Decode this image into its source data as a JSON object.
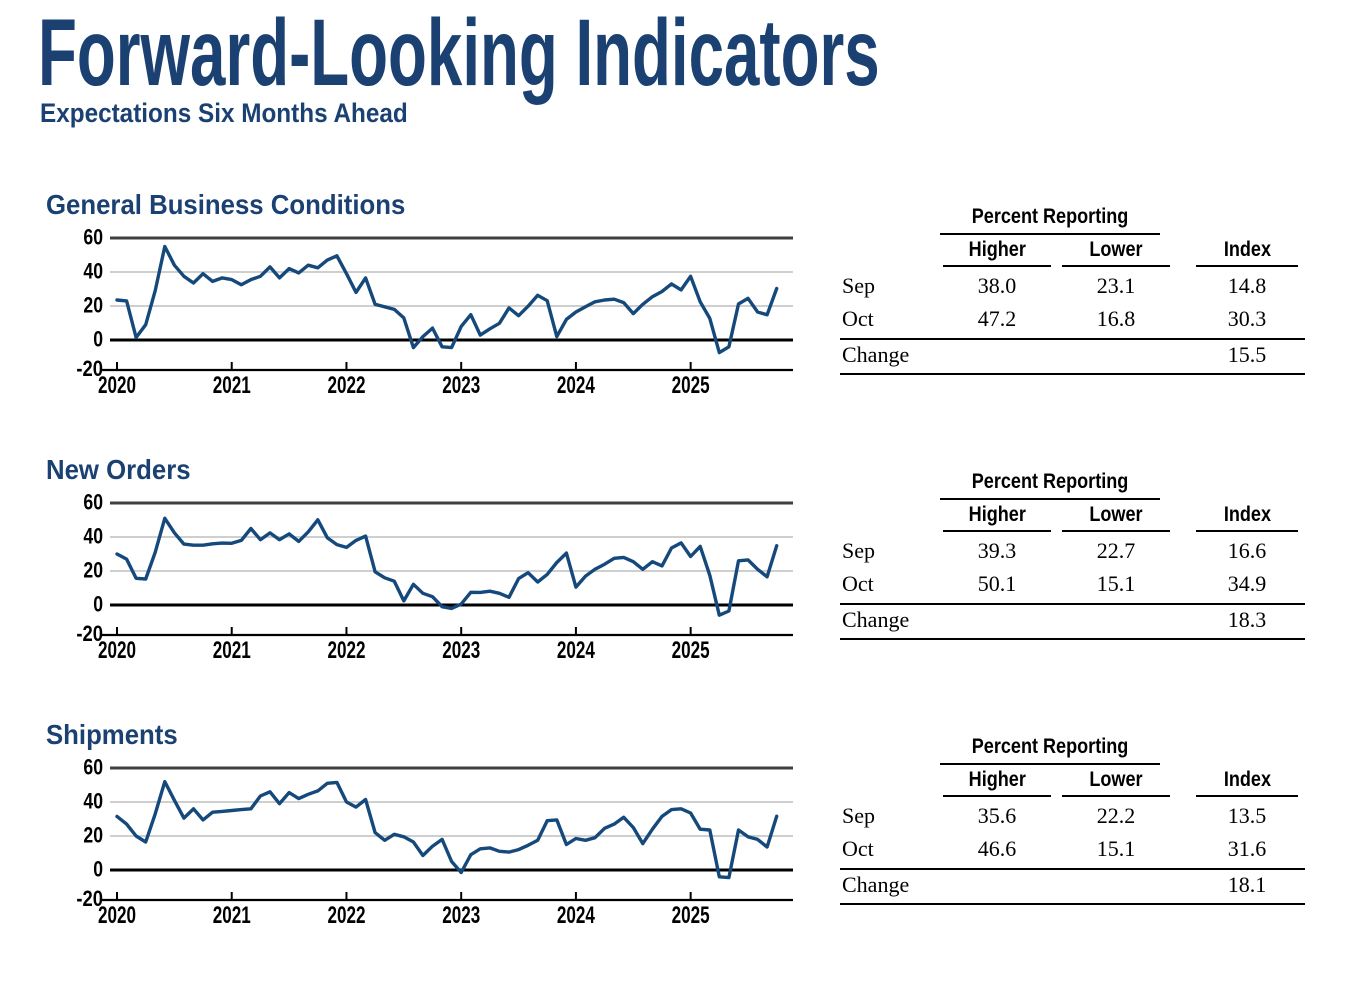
{
  "page": {
    "title": "Forward-Looking Indicators",
    "subtitle": "Expectations Six Months Ahead"
  },
  "colors": {
    "navy_text": "#1B4173",
    "line": "#15497C",
    "grid": "#C8C8C8",
    "top_rule": "#3F3F3F",
    "axis": "#000000"
  },
  "sections": [
    {
      "title": "General Business Conditions",
      "table": {
        "group_header": "Percent Reporting",
        "col_higher": "Higher",
        "col_lower": "Lower",
        "col_index": "Index",
        "rows": [
          {
            "label": "Sep",
            "higher": "38.0",
            "lower": "23.1",
            "index": "14.8"
          },
          {
            "label": "Oct",
            "higher": "47.2",
            "lower": "16.8",
            "index": "30.3"
          },
          {
            "label": "Change",
            "higher": "",
            "lower": "",
            "index": "15.5"
          }
        ]
      }
    },
    {
      "title": "New Orders",
      "table": {
        "group_header": "Percent Reporting",
        "col_higher": "Higher",
        "col_lower": "Lower",
        "col_index": "Index",
        "rows": [
          {
            "label": "Sep",
            "higher": "39.3",
            "lower": "22.7",
            "index": "16.6"
          },
          {
            "label": "Oct",
            "higher": "50.1",
            "lower": "15.1",
            "index": "34.9"
          },
          {
            "label": "Change",
            "higher": "",
            "lower": "",
            "index": "18.3"
          }
        ]
      }
    },
    {
      "title": "Shipments",
      "table": {
        "group_header": "Percent Reporting",
        "col_higher": "Higher",
        "col_lower": "Lower",
        "col_index": "Index",
        "rows": [
          {
            "label": "Sep",
            "higher": "35.6",
            "lower": "22.2",
            "index": "13.5"
          },
          {
            "label": "Oct",
            "higher": "46.6",
            "lower": "15.1",
            "index": "31.6"
          },
          {
            "label": "Change",
            "higher": "",
            "lower": "",
            "index": "18.1"
          }
        ]
      }
    }
  ],
  "chart_data": [
    {
      "type": "line",
      "title": "General Business Conditions",
      "x_frequency": "monthly",
      "x_start": "2020-01",
      "x_end": "2025-10",
      "x_tick_labels": [
        "2020",
        "2021",
        "2022",
        "2023",
        "2024",
        "2025"
      ],
      "ylim": [
        -20,
        60
      ],
      "yticks": [
        60,
        40,
        20,
        0,
        -20
      ],
      "grid": "horizontal",
      "zero_line": true,
      "legend": "none",
      "series": [
        {
          "name": "General Business Conditions",
          "values": [
            23.5,
            23.0,
            1.5,
            9.0,
            29.0,
            55.0,
            44.0,
            37.5,
            33.5,
            39.0,
            34.5,
            36.5,
            35.5,
            32.5,
            35.5,
            37.5,
            43.0,
            36.5,
            42.0,
            39.5,
            44.0,
            42.5,
            47.0,
            49.5,
            39.0,
            28.0,
            36.5,
            21.0,
            19.5,
            18.0,
            13.0,
            -4.5,
            2.0,
            7.0,
            -4.0,
            -4.5,
            8.0,
            14.9,
            2.9,
            6.6,
            9.8,
            18.9,
            14.3,
            19.9,
            26.3,
            23.1,
            2.0,
            12.1,
            16.5,
            19.5,
            22.5,
            23.5,
            24.0,
            22.0,
            15.5,
            21.0,
            25.5,
            28.5,
            33.0,
            29.5,
            37.5,
            22.5,
            12.7,
            -7.4,
            -4.0,
            21.2,
            24.5,
            16.5,
            14.8,
            30.3
          ]
        }
      ]
    },
    {
      "type": "line",
      "title": "New Orders",
      "x_frequency": "monthly",
      "x_start": "2020-01",
      "x_end": "2025-10",
      "x_tick_labels": [
        "2020",
        "2021",
        "2022",
        "2023",
        "2024",
        "2025"
      ],
      "ylim": [
        -20,
        60
      ],
      "yticks": [
        60,
        40,
        20,
        0,
        -20
      ],
      "grid": "horizontal",
      "zero_line": true,
      "legend": "none",
      "series": [
        {
          "name": "New Orders",
          "values": [
            30.0,
            27.0,
            15.7,
            15.3,
            31.0,
            51.0,
            42.5,
            35.8,
            35.2,
            35.2,
            36.0,
            36.4,
            36.3,
            38.0,
            45.0,
            38.4,
            42.4,
            38.4,
            41.8,
            37.4,
            43.0,
            50.1,
            39.6,
            35.5,
            33.9,
            38.0,
            40.5,
            19.5,
            16.0,
            14.0,
            2.4,
            12.2,
            6.9,
            4.9,
            -1.0,
            -2.0,
            0.5,
            7.5,
            7.4,
            8.1,
            6.9,
            4.5,
            15.5,
            19.0,
            13.5,
            18.0,
            25.0,
            30.5,
            10.5,
            17.0,
            21.0,
            24.0,
            27.5,
            28.0,
            25.5,
            21.0,
            25.5,
            23.0,
            33.5,
            36.5,
            28.5,
            34.5,
            17.5,
            -6.0,
            -3.5,
            26.0,
            26.5,
            21.0,
            16.6,
            34.9
          ]
        }
      ]
    },
    {
      "type": "line",
      "title": "Shipments",
      "x_frequency": "monthly",
      "x_start": "2020-01",
      "x_end": "2025-10",
      "x_tick_labels": [
        "2020",
        "2021",
        "2022",
        "2023",
        "2024",
        "2025"
      ],
      "ylim": [
        -20,
        60
      ],
      "yticks": [
        60,
        40,
        20,
        0,
        -20
      ],
      "grid": "horizontal",
      "zero_line": true,
      "legend": "none",
      "series": [
        {
          "name": "Shipments",
          "values": [
            31.5,
            27.0,
            20.0,
            16.5,
            33.0,
            52.0,
            41.0,
            30.5,
            36.0,
            29.5,
            34.0,
            34.5,
            35.0,
            35.5,
            36.0,
            43.5,
            46.0,
            39.0,
            45.5,
            42.0,
            44.5,
            46.5,
            51.0,
            51.5,
            40.0,
            37.0,
            41.5,
            22.0,
            17.5,
            21.0,
            19.5,
            16.5,
            8.5,
            14.0,
            18.0,
            5.0,
            -1.5,
            9.0,
            12.5,
            13.0,
            11.0,
            10.5,
            12.0,
            14.5,
            17.5,
            29.0,
            29.5,
            15.0,
            18.5,
            17.5,
            19.0,
            24.5,
            27.0,
            31.0,
            25.0,
            15.5,
            24.0,
            31.5,
            35.5,
            36.0,
            33.5,
            24.0,
            23.5,
            -4.0,
            -4.5,
            23.5,
            19.5,
            18.0,
            13.5,
            31.6
          ]
        }
      ]
    }
  ]
}
